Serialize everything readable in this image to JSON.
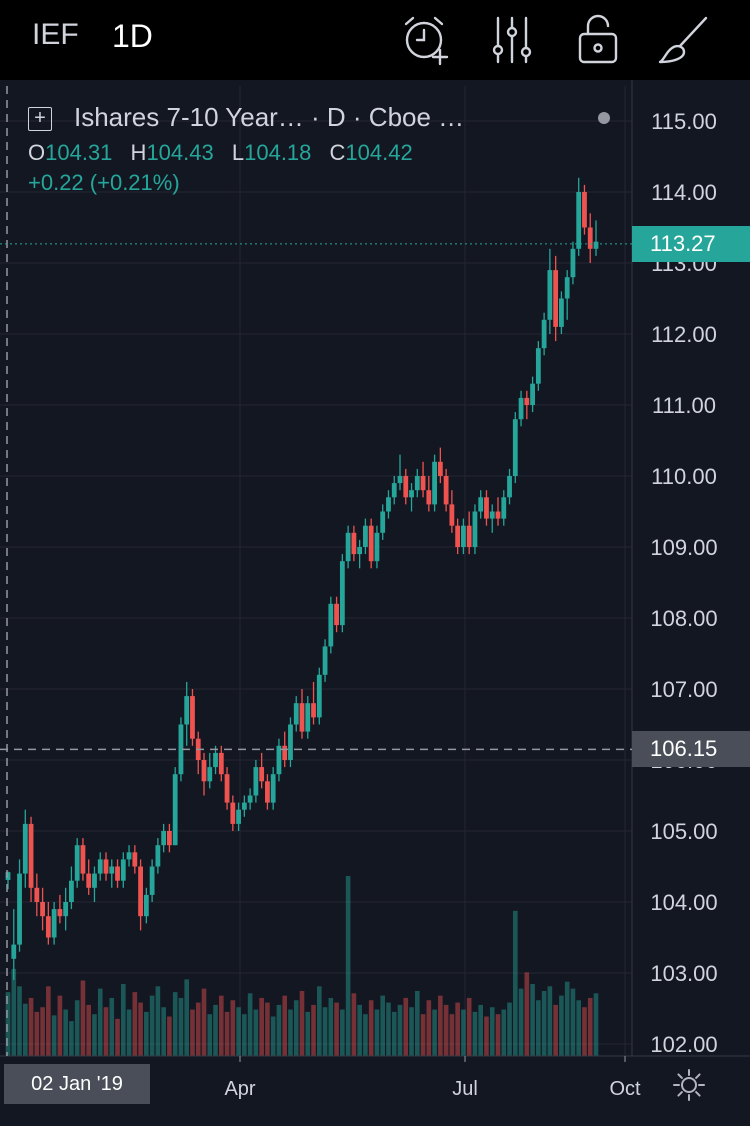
{
  "toolbar": {
    "symbol": "IEF",
    "interval": "1D",
    "icons": [
      "alarm-plus-icon",
      "indicators-sliders-icon",
      "unlock-icon",
      "drawing-brush-icon"
    ]
  },
  "legend": {
    "title": "Ishares 7-10 Year…  ·  D  ·  Cboe …",
    "open_label": "O",
    "open": "104.31",
    "high_label": "H",
    "high": "104.43",
    "low_label": "L",
    "low": "104.18",
    "close_label": "C",
    "close": "104.42",
    "change": "+0.22 (+0.21%)"
  },
  "last_price": "113.27",
  "crosshair_price": "106.15",
  "crosshair_date": "02 Jan '19",
  "colors": {
    "up": "#26a69a",
    "down": "#ef5350",
    "background": "#131722",
    "grid": "#242733"
  },
  "chart_data": {
    "type": "candlestick",
    "y_ticks": [
      "115.00",
      "114.00",
      "113.00",
      "112.00",
      "111.00",
      "110.00",
      "109.00",
      "108.00",
      "107.00",
      "106.00",
      "105.00",
      "104.00",
      "103.00",
      "102.00"
    ],
    "ylim": [
      101.8,
      115.35
    ],
    "x_ticks": [
      "Apr",
      "Jul",
      "Oct"
    ],
    "x_tick_positions": [
      59,
      122,
      186
    ],
    "grid": true,
    "series": [
      [
        104.31,
        104.43,
        104.18,
        104.42
      ],
      [
        103.2,
        103.9,
        102.9,
        103.4
      ],
      [
        103.4,
        104.6,
        103.3,
        104.4
      ],
      [
        104.4,
        105.3,
        104.2,
        105.1
      ],
      [
        105.1,
        105.2,
        104.0,
        104.2
      ],
      [
        104.2,
        104.4,
        103.8,
        104.0
      ],
      [
        104.0,
        104.2,
        103.6,
        103.8
      ],
      [
        103.8,
        104.0,
        103.4,
        103.5
      ],
      [
        103.5,
        104.0,
        103.4,
        103.9
      ],
      [
        103.9,
        104.1,
        103.7,
        103.8
      ],
      [
        103.8,
        104.2,
        103.6,
        104.0
      ],
      [
        104.0,
        104.5,
        103.9,
        104.3
      ],
      [
        104.3,
        104.9,
        104.2,
        104.8
      ],
      [
        104.8,
        104.9,
        104.3,
        104.4
      ],
      [
        104.4,
        104.6,
        104.1,
        104.2
      ],
      [
        104.2,
        104.5,
        104.0,
        104.4
      ],
      [
        104.4,
        104.7,
        104.3,
        104.6
      ],
      [
        104.6,
        104.7,
        104.3,
        104.4
      ],
      [
        104.4,
        104.6,
        104.2,
        104.5
      ],
      [
        104.5,
        104.6,
        104.2,
        104.3
      ],
      [
        104.3,
        104.7,
        104.2,
        104.6
      ],
      [
        104.6,
        104.8,
        104.5,
        104.7
      ],
      [
        104.7,
        104.8,
        104.4,
        104.5
      ],
      [
        104.5,
        104.6,
        103.6,
        103.8
      ],
      [
        103.8,
        104.2,
        103.7,
        104.1
      ],
      [
        104.1,
        104.6,
        104.0,
        104.5
      ],
      [
        104.5,
        104.9,
        104.4,
        104.8
      ],
      [
        104.8,
        105.1,
        104.7,
        105.0
      ],
      [
        105.0,
        105.1,
        104.7,
        104.8
      ],
      [
        104.8,
        105.9,
        104.8,
        105.8
      ],
      [
        105.8,
        106.6,
        105.7,
        106.5
      ],
      [
        106.5,
        107.1,
        106.2,
        106.9
      ],
      [
        106.9,
        107.0,
        106.2,
        106.3
      ],
      [
        106.3,
        106.4,
        105.8,
        106.0
      ],
      [
        106.0,
        106.1,
        105.5,
        105.7
      ],
      [
        105.7,
        106.1,
        105.6,
        105.9
      ],
      [
        105.9,
        106.2,
        105.8,
        106.1
      ],
      [
        106.1,
        106.2,
        105.7,
        105.8
      ],
      [
        105.8,
        105.9,
        105.3,
        105.4
      ],
      [
        105.4,
        105.5,
        105.0,
        105.1
      ],
      [
        105.1,
        105.4,
        105.0,
        105.3
      ],
      [
        105.3,
        105.5,
        105.2,
        105.4
      ],
      [
        105.4,
        105.6,
        105.3,
        105.5
      ],
      [
        105.5,
        106.0,
        105.4,
        105.9
      ],
      [
        105.9,
        106.1,
        105.6,
        105.7
      ],
      [
        105.7,
        105.8,
        105.3,
        105.4
      ],
      [
        105.4,
        105.9,
        105.3,
        105.8
      ],
      [
        105.8,
        106.3,
        105.7,
        106.2
      ],
      [
        106.2,
        106.4,
        105.9,
        106.0
      ],
      [
        106.0,
        106.6,
        105.9,
        106.5
      ],
      [
        106.5,
        106.9,
        106.4,
        106.8
      ],
      [
        106.8,
        107.0,
        106.3,
        106.4
      ],
      [
        106.4,
        106.9,
        106.3,
        106.8
      ],
      [
        106.8,
        107.1,
        106.5,
        106.6
      ],
      [
        106.6,
        107.3,
        106.5,
        107.2
      ],
      [
        107.2,
        107.7,
        107.1,
        107.6
      ],
      [
        107.6,
        108.3,
        107.5,
        108.2
      ],
      [
        108.2,
        108.3,
        107.8,
        107.9
      ],
      [
        107.9,
        108.9,
        107.8,
        108.8
      ],
      [
        108.8,
        109.3,
        108.7,
        109.2
      ],
      [
        109.2,
        109.3,
        108.8,
        108.9
      ],
      [
        108.9,
        109.1,
        108.7,
        109.0
      ],
      [
        109.0,
        109.4,
        108.9,
        109.3
      ],
      [
        109.3,
        109.4,
        108.7,
        108.8
      ],
      [
        108.8,
        109.3,
        108.7,
        109.2
      ],
      [
        109.2,
        109.6,
        109.1,
        109.5
      ],
      [
        109.5,
        109.8,
        109.4,
        109.7
      ],
      [
        109.7,
        110.0,
        109.6,
        109.9
      ],
      [
        109.9,
        110.3,
        109.8,
        110.0
      ],
      [
        110.0,
        110.1,
        109.6,
        109.7
      ],
      [
        109.7,
        109.9,
        109.5,
        109.8
      ],
      [
        109.8,
        110.1,
        109.7,
        110.0
      ],
      [
        110.0,
        110.2,
        109.7,
        109.8
      ],
      [
        109.8,
        110.0,
        109.5,
        109.6
      ],
      [
        109.6,
        110.3,
        109.5,
        110.2
      ],
      [
        110.2,
        110.4,
        109.9,
        110.0
      ],
      [
        110.0,
        110.1,
        109.5,
        109.6
      ],
      [
        109.6,
        109.8,
        109.2,
        109.3
      ],
      [
        109.3,
        109.4,
        108.9,
        109.0
      ],
      [
        109.0,
        109.4,
        108.9,
        109.3
      ],
      [
        109.3,
        109.5,
        108.9,
        109.0
      ],
      [
        109.0,
        109.6,
        108.9,
        109.5
      ],
      [
        109.5,
        109.8,
        109.4,
        109.7
      ],
      [
        109.7,
        109.8,
        109.3,
        109.4
      ],
      [
        109.4,
        109.6,
        109.2,
        109.5
      ],
      [
        109.5,
        109.7,
        109.3,
        109.4
      ],
      [
        109.4,
        109.8,
        109.3,
        109.7
      ],
      [
        109.7,
        110.1,
        109.6,
        110.0
      ],
      [
        110.0,
        110.9,
        109.9,
        110.8
      ],
      [
        110.8,
        111.2,
        110.7,
        111.1
      ],
      [
        111.1,
        111.2,
        110.8,
        111.0
      ],
      [
        111.0,
        111.4,
        110.9,
        111.3
      ],
      [
        111.3,
        111.9,
        111.2,
        111.8
      ],
      [
        111.8,
        112.3,
        111.7,
        112.2
      ],
      [
        112.2,
        113.2,
        112.0,
        112.9
      ],
      [
        112.9,
        113.1,
        111.9,
        112.1
      ],
      [
        112.1,
        112.6,
        112.0,
        112.5
      ],
      [
        112.5,
        112.9,
        112.2,
        112.8
      ],
      [
        112.8,
        113.3,
        112.7,
        113.2
      ],
      [
        113.2,
        114.2,
        113.1,
        114.0
      ],
      [
        114.0,
        114.1,
        113.4,
        113.5
      ],
      [
        113.5,
        113.7,
        113.0,
        113.2
      ],
      [
        113.2,
        113.6,
        113.1,
        113.3
      ]
    ],
    "volume": [
      0.55,
      0.75,
      0.6,
      0.45,
      0.5,
      0.38,
      0.42,
      0.6,
      0.35,
      0.52,
      0.4,
      0.3,
      0.48,
      0.65,
      0.44,
      0.36,
      0.58,
      0.42,
      0.5,
      0.32,
      0.62,
      0.4,
      0.55,
      0.46,
      0.38,
      0.52,
      0.6,
      0.42,
      0.34,
      0.55,
      0.5,
      0.66,
      0.4,
      0.46,
      0.58,
      0.36,
      0.44,
      0.52,
      0.38,
      0.48,
      0.42,
      0.36,
      0.54,
      0.4,
      0.5,
      0.46,
      0.34,
      0.44,
      0.52,
      0.4,
      0.48,
      0.56,
      0.38,
      0.44,
      0.6,
      0.42,
      0.5,
      0.46,
      0.4,
      1.55,
      0.54,
      0.44,
      0.36,
      0.48,
      0.4,
      0.52,
      0.46,
      0.38,
      0.44,
      0.5,
      0.42,
      0.56,
      0.36,
      0.48,
      0.4,
      0.52,
      0.44,
      0.36,
      0.46,
      0.4,
      0.5,
      0.38,
      0.44,
      0.34,
      0.42,
      0.36,
      0.4,
      0.46,
      1.25,
      0.58,
      0.72,
      0.62,
      0.48,
      0.56,
      0.6,
      0.44,
      0.52,
      0.64,
      0.58,
      0.48,
      0.42,
      0.5,
      0.54
    ],
    "volume_scale_max": 2.0
  }
}
